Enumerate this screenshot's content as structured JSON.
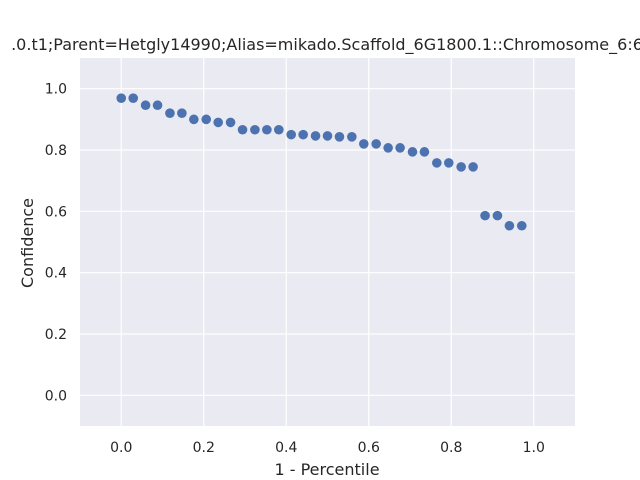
{
  "chart_data": {
    "type": "scatter",
    "title": ".0.t1;Parent=Hetgly14990;Alias=mikado.Scaffold_6G1800.1::Chromosome_6:6",
    "xlabel": "1 - Percentile",
    "ylabel": "Confidence",
    "xlim": [
      -0.1,
      1.1
    ],
    "ylim": [
      -0.1,
      1.1
    ],
    "xticks": [
      0.0,
      0.2,
      0.4,
      0.6,
      0.8,
      1.0
    ],
    "yticks": [
      0.0,
      0.2,
      0.4,
      0.6,
      0.8,
      1.0
    ],
    "xtick_labels": [
      "0.0",
      "0.2",
      "0.4",
      "0.6",
      "0.8",
      "1.0"
    ],
    "ytick_labels": [
      "0.0",
      "0.2",
      "0.4",
      "0.6",
      "0.8",
      "1.0"
    ],
    "grid": true,
    "point_color": "#4c72b0",
    "background_color": "#eaeaf2",
    "points": [
      {
        "x": 0.0,
        "y": 0.969
      },
      {
        "x": 0.029,
        "y": 0.969
      },
      {
        "x": 0.059,
        "y": 0.946
      },
      {
        "x": 0.088,
        "y": 0.946
      },
      {
        "x": 0.118,
        "y": 0.92
      },
      {
        "x": 0.147,
        "y": 0.92
      },
      {
        "x": 0.176,
        "y": 0.9
      },
      {
        "x": 0.206,
        "y": 0.9
      },
      {
        "x": 0.235,
        "y": 0.89
      },
      {
        "x": 0.265,
        "y": 0.89
      },
      {
        "x": 0.294,
        "y": 0.866
      },
      {
        "x": 0.324,
        "y": 0.866
      },
      {
        "x": 0.353,
        "y": 0.866
      },
      {
        "x": 0.382,
        "y": 0.866
      },
      {
        "x": 0.412,
        "y": 0.85
      },
      {
        "x": 0.441,
        "y": 0.85
      },
      {
        "x": 0.471,
        "y": 0.846
      },
      {
        "x": 0.5,
        "y": 0.846
      },
      {
        "x": 0.529,
        "y": 0.843
      },
      {
        "x": 0.559,
        "y": 0.843
      },
      {
        "x": 0.588,
        "y": 0.82
      },
      {
        "x": 0.618,
        "y": 0.82
      },
      {
        "x": 0.647,
        "y": 0.807
      },
      {
        "x": 0.676,
        "y": 0.807
      },
      {
        "x": 0.706,
        "y": 0.794
      },
      {
        "x": 0.735,
        "y": 0.794
      },
      {
        "x": 0.765,
        "y": 0.758
      },
      {
        "x": 0.794,
        "y": 0.758
      },
      {
        "x": 0.824,
        "y": 0.745
      },
      {
        "x": 0.853,
        "y": 0.745
      },
      {
        "x": 0.882,
        "y": 0.586
      },
      {
        "x": 0.912,
        "y": 0.586
      },
      {
        "x": 0.941,
        "y": 0.553
      },
      {
        "x": 0.971,
        "y": 0.553
      }
    ]
  }
}
